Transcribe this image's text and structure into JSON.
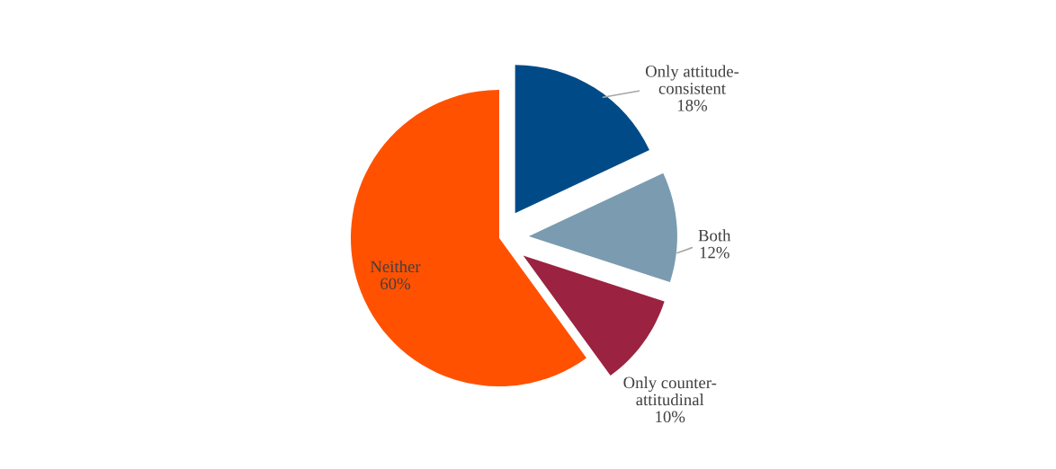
{
  "chart_data": {
    "type": "pie",
    "categories": [
      "Only attitude-\nconsistent",
      "Both",
      "Only counter-\nattitudinal",
      "Neither"
    ],
    "values": [
      18,
      12,
      10,
      60
    ],
    "value_labels": [
      "18%",
      "12%",
      "10%",
      "60%"
    ],
    "colors": [
      "#004b87",
      "#7a9bb0",
      "#9b2240",
      "#ff5100"
    ]
  }
}
